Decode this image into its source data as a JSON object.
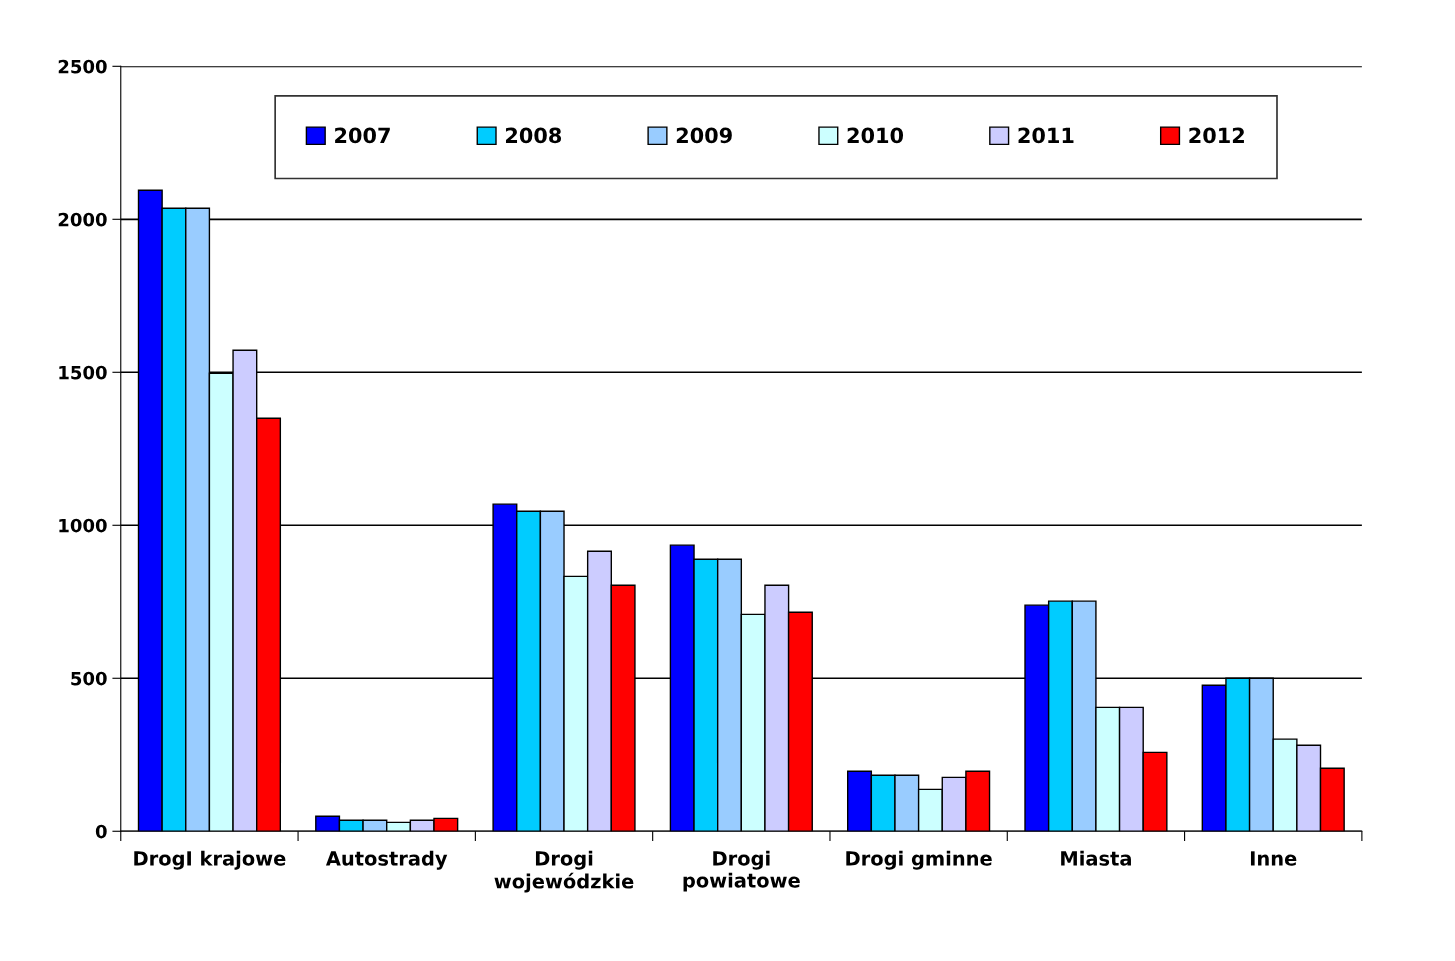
{
  "chart_data": {
    "type": "bar",
    "categories": [
      "DrogI krajowe",
      "Autostrady",
      "Drogi\nwojewódzkie",
      "Drogi\npowiatowe",
      "Drogi gminne",
      "Miasta",
      "Inne"
    ],
    "series": [
      {
        "name": "2007",
        "color": "#0000ff",
        "values": [
          2095,
          49,
          1069,
          935,
          196,
          739,
          477
        ]
      },
      {
        "name": "2008",
        "color": "#00ccff",
        "values": [
          2036,
          36,
          1046,
          889,
          183,
          752,
          500
        ]
      },
      {
        "name": "2009",
        "color": "#99ccff",
        "values": [
          2036,
          36,
          1046,
          889,
          183,
          752,
          500
        ]
      },
      {
        "name": "2010",
        "color": "#ccffff",
        "values": [
          1497,
          29,
          833,
          709,
          137,
          405,
          301
        ]
      },
      {
        "name": "2011",
        "color": "#ccccff",
        "values": [
          1572,
          36,
          915,
          804,
          176,
          405,
          281
        ]
      },
      {
        "name": "2012",
        "color": "#ff0000",
        "values": [
          1350,
          42,
          804,
          716,
          196,
          258,
          206
        ]
      }
    ],
    "ylim": [
      0,
      2500
    ],
    "yticks": [
      0,
      500,
      1000,
      1500,
      2000,
      2500
    ],
    "grid": "y",
    "legend": "top"
  }
}
